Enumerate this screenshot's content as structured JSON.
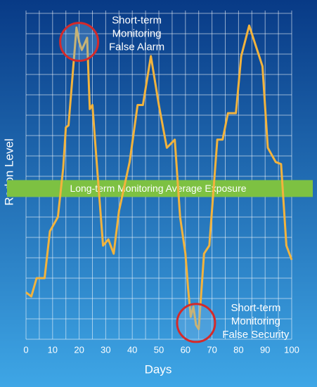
{
  "chart_data": {
    "type": "line",
    "x_label": "Days",
    "y_label": "Radon Level",
    "xlim": [
      0,
      100
    ],
    "xticks": [
      0,
      10,
      20,
      30,
      40,
      50,
      60,
      70,
      80,
      90,
      100
    ],
    "ylim": [
      0,
      16
    ],
    "yticks": [
      0,
      1,
      2,
      3,
      4,
      5,
      6,
      7,
      8,
      9,
      10,
      11,
      12,
      13,
      14,
      15,
      16
    ],
    "grid": true,
    "series": [
      {
        "name": "Radon Level",
        "color": "#f2b33d",
        "x": [
          0,
          2,
          4,
          7,
          9,
          12,
          14,
          15,
          16,
          19,
          20,
          21,
          23,
          24,
          25,
          27,
          29,
          31,
          33,
          35,
          39,
          42,
          44,
          47,
          50,
          53,
          56,
          58,
          60,
          61,
          62,
          63,
          64,
          65,
          67,
          69,
          72,
          74,
          76,
          79,
          81,
          84,
          89,
          91,
          94,
          96,
          98,
          100
        ],
        "values": [
          2.3,
          2.1,
          3.0,
          3.0,
          5.3,
          6.0,
          8.4,
          10.4,
          10.5,
          15.3,
          14.6,
          14.2,
          14.8,
          11.3,
          11.5,
          8.0,
          4.6,
          4.9,
          4.2,
          6.3,
          8.7,
          11.5,
          11.5,
          13.9,
          11.5,
          9.4,
          9.8,
          6.0,
          4.2,
          2.5,
          1.1,
          1.6,
          0.7,
          0.5,
          4.2,
          4.6,
          9.8,
          9.8,
          11.1,
          11.1,
          13.9,
          15.4,
          13.4,
          9.4,
          8.7,
          8.6,
          4.6,
          3.9
        ]
      }
    ],
    "band": {
      "label": "Long-term Monitoring Average Exposure",
      "value": 7.4,
      "color": "#7dc142"
    },
    "annotations": [
      {
        "lines": [
          "Short-term",
          "Monitoring",
          "False Alarm"
        ],
        "x": 20,
        "y": 14.6
      },
      {
        "lines": [
          "Short-term",
          "Monitoring",
          "False Security"
        ],
        "x": 64,
        "y": 0.8
      }
    ]
  }
}
